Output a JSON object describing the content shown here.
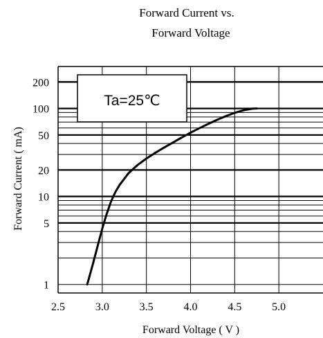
{
  "chart_data": {
    "type": "line",
    "title_line1": "Forward Current vs.",
    "title_line2": "Forward Voltage",
    "xlabel": "Forward Voltage ( V )",
    "ylabel": "Forward Current ( mA)",
    "annotation": "Ta=25℃",
    "x_scale": "linear",
    "y_scale": "log",
    "xlim": [
      2.5,
      5.5
    ],
    "ylim": [
      0.8,
      300
    ],
    "x_ticks": [
      2.5,
      3.0,
      3.5,
      4.0,
      4.5,
      5.0
    ],
    "x_tick_labels": [
      "2.5",
      "3.0",
      "3.5",
      "4.0",
      "4.5",
      "5.0"
    ],
    "y_ticks": [
      1,
      5,
      10,
      20,
      50,
      100,
      200
    ],
    "y_tick_labels": [
      "1",
      "5",
      "10",
      "20",
      "50",
      "100",
      "200"
    ],
    "grid": true,
    "series": [
      {
        "x": [
          2.83,
          2.9,
          2.95,
          3.0,
          3.05,
          3.1,
          3.15,
          3.2,
          3.3,
          3.4,
          3.5,
          3.6,
          3.7,
          3.8,
          3.9,
          4.0,
          4.1,
          4.2,
          4.3,
          4.4,
          4.5,
          4.6,
          4.7,
          4.75
        ],
        "y": [
          1,
          1.8,
          2.8,
          4.3,
          6.3,
          8.8,
          11.3,
          13.7,
          18.5,
          22.8,
          27,
          31.3,
          35.9,
          41,
          46.7,
          53,
          59.7,
          66.8,
          74.3,
          81.9,
          89.3,
          95.4,
          99.4,
          100
        ]
      }
    ]
  }
}
